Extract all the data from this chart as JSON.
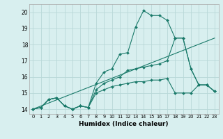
{
  "xlabel": "Humidex (Indice chaleur)",
  "background_color": "#d8efef",
  "grid_color": "#b8d8d8",
  "line_color": "#1a7a6a",
  "xlim": [
    -0.5,
    23.5
  ],
  "ylim": [
    13.7,
    20.5
  ],
  "xticks": [
    0,
    1,
    2,
    3,
    4,
    5,
    6,
    7,
    8,
    9,
    10,
    11,
    12,
    13,
    14,
    15,
    16,
    17,
    18,
    19,
    20,
    21,
    22,
    23
  ],
  "yticks": [
    14,
    15,
    16,
    17,
    18,
    19,
    20
  ],
  "series": [
    {
      "x": [
        0,
        1,
        2,
        3,
        4,
        5,
        6,
        7,
        8,
        9,
        10,
        11,
        12,
        13,
        14,
        15,
        16,
        17,
        18,
        19,
        20,
        21,
        22,
        23
      ],
      "y": [
        14.0,
        14.1,
        14.6,
        14.7,
        14.2,
        14.0,
        14.2,
        14.1,
        15.6,
        16.3,
        16.5,
        17.4,
        17.5,
        19.1,
        20.1,
        19.8,
        19.8,
        19.5,
        18.4,
        18.4,
        16.5,
        15.5,
        15.5,
        15.1
      ],
      "markers": true
    },
    {
      "x": [
        0,
        1,
        2,
        3,
        4,
        5,
        6,
        7,
        8,
        9,
        10,
        11,
        12,
        13,
        14,
        15,
        16,
        17,
        18,
        19,
        20,
        21,
        22,
        23
      ],
      "y": [
        14.0,
        14.1,
        14.6,
        14.7,
        14.2,
        14.0,
        14.2,
        14.1,
        15.2,
        15.6,
        15.8,
        16.0,
        16.4,
        16.5,
        16.6,
        16.7,
        16.8,
        17.0,
        18.4,
        18.4,
        16.5,
        15.5,
        15.5,
        15.1
      ],
      "markers": true
    },
    {
      "x": [
        0,
        1,
        2,
        3,
        4,
        5,
        6,
        7,
        8,
        9,
        10,
        11,
        12,
        13,
        14,
        15,
        16,
        17,
        18,
        19,
        20,
        21,
        22,
        23
      ],
      "y": [
        14.0,
        14.1,
        14.6,
        14.7,
        14.2,
        14.0,
        14.2,
        14.1,
        15.0,
        15.2,
        15.4,
        15.5,
        15.6,
        15.7,
        15.7,
        15.8,
        15.8,
        15.9,
        15.0,
        15.0,
        15.0,
        15.5,
        15.5,
        15.1
      ],
      "markers": true
    },
    {
      "x": [
        0,
        23
      ],
      "y": [
        14.0,
        18.4
      ],
      "markers": false
    }
  ]
}
